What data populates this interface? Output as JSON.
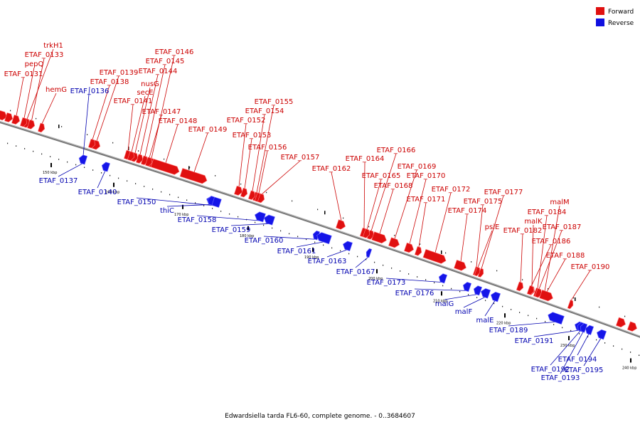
{
  "title": "Edwardsiella tarda FL6-60, complete genome. - 0..3684607",
  "legend": [
    {
      "label": "Forward",
      "color": "#e01010"
    },
    {
      "label": "Reverse",
      "color": "#1010e0"
    }
  ],
  "colors": {
    "forward": "#e01010",
    "reverse": "#1515e8",
    "forward_line": "#cc0000",
    "reverse_line": "#0000b0",
    "backbone": "#888888"
  },
  "scale_ticks": [
    "150 kbp",
    "160 kbp",
    "170 kbp",
    "180 kbp",
    "190 kbp",
    "200 kbp",
    "210 kbp",
    "220 kbp",
    "230 kbp",
    "240 kbp"
  ],
  "forward_genes": [
    "trkH1",
    "ETAF_0133",
    "pepQ",
    "ETAF_0131",
    "hemG",
    "ETAF_0139",
    "ETAF_0138",
    "ETAF_0141",
    "ETAF_0146",
    "ETAF_0145",
    "ETAF_0144",
    "nusG",
    "secE",
    "ETAF_0147",
    "ETAF_0148",
    "ETAF_0149",
    "ETAF_0155",
    "ETAF_0154",
    "ETAF_0152",
    "ETAF_0153",
    "ETAF_0156",
    "ETAF_0157",
    "ETAF_0162",
    "ETAF_0164",
    "ETAF_0166",
    "ETAF_0165",
    "ETAF_0168",
    "ETAF_0169",
    "ETAF_0170",
    "ETAF_0171",
    "ETAF_0172",
    "ETAF_0174",
    "ETAF_0175",
    "ETAF_0177",
    "psiE",
    "malM",
    "ETAF_0184",
    "malK",
    "ETAF_0182",
    "ETAF_0187",
    "ETAF_0186",
    "ETAF_0188",
    "ETAF_0190"
  ],
  "reverse_genes": [
    "ETAF_0136",
    "ETAF_0137",
    "ETAF_0140",
    "ETAF_0150",
    "thiC",
    "ETAF_0158",
    "ETAF_0159",
    "ETAF_0160",
    "ETAF_0161",
    "ETAF_0163",
    "ETAF_0167",
    "ETAF_0173",
    "ETAF_0176",
    "malG",
    "malF",
    "malE",
    "ETAF_0189",
    "ETAF_0191",
    "ETAF_0194",
    "ETAF_0192",
    "ETAF_0193",
    "ETAF_0195"
  ]
}
